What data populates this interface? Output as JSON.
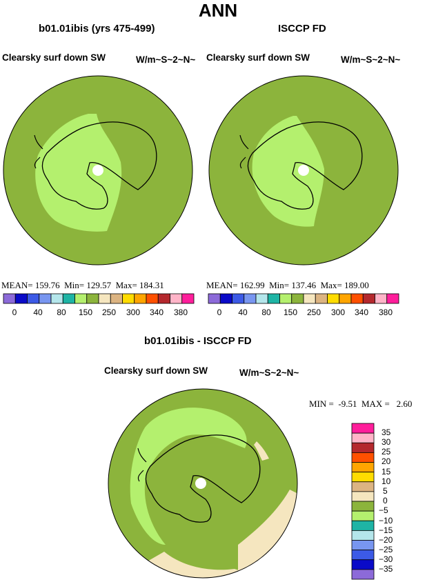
{
  "figure": {
    "title": "ANN"
  },
  "panels": [
    {
      "title": "b01.01ibis (yrs 475-499)",
      "variable": "Clearsky surf down SW",
      "units": "W/m~S~2~N~",
      "stats": {
        "mean_label": "MEAN=",
        "mean": "159.76",
        "min_label": "Min=",
        "min": "129.57",
        "max_label": "Max=",
        "max": "184.31"
      }
    },
    {
      "title": "ISCCP FD",
      "variable": "Clearsky surf down SW",
      "units": "W/m~S~2~N~",
      "stats": {
        "mean_label": "MEAN=",
        "mean": "162.99",
        "min_label": "Min=",
        "min": "137.46",
        "max_label": "Max=",
        "max": "189.00"
      }
    },
    {
      "title": "b01.01ibis - ISCCP FD",
      "variable": "Clearsky surf down SW",
      "units": "W/m~S~2~N~",
      "stats": {
        "min_label": "MIN =",
        "min": "-9.51",
        "max_label": "MAX =",
        "max": "2.60"
      }
    }
  ],
  "colors": {
    "main_colorbar": [
      "#8c6ad9",
      "#0a0ac8",
      "#3c5ae6",
      "#7896f0",
      "#b4e6eb",
      "#1eb4a5",
      "#b4f06e",
      "#8cb43c",
      "#f5e6bf",
      "#dcb482",
      "#ffdc00",
      "#ffa500",
      "#ff5000",
      "#b4282d",
      "#ffb4c8",
      "#ff1e9b"
    ],
    "diff_colorbar": [
      "#8c6ad9",
      "#0a0ac8",
      "#3c5ae6",
      "#7896f0",
      "#b4e6eb",
      "#1eb4a5",
      "#b4f06e",
      "#8cb43c",
      "#f5e6bf",
      "#dcb482",
      "#ffdc00",
      "#ffa500",
      "#ff5000",
      "#b4282d",
      "#ffb4c8",
      "#ff1e9b"
    ],
    "ocean": "#8cb43c",
    "land_light": "#b4f06e",
    "positive": "#f5e6bf"
  },
  "chart_data": [
    {
      "type": "heatmap",
      "projection": "south-polar-stereographic",
      "title": "b01.01ibis (yrs 475-499)",
      "variable": "Clearsky surf down SW",
      "units": "W/m~S~2~N~",
      "levels": [
        0,
        40,
        80,
        150,
        250,
        300,
        340,
        380
      ],
      "colorbar_labels": [
        "0",
        "40",
        "80",
        "150",
        "250",
        "300",
        "340",
        "380"
      ],
      "mean": 159.76,
      "min": 129.57,
      "max": 184.31
    },
    {
      "type": "heatmap",
      "projection": "south-polar-stereographic",
      "title": "ISCCP FD",
      "variable": "Clearsky surf down SW",
      "units": "W/m~S~2~N~",
      "levels": [
        0,
        40,
        80,
        150,
        250,
        300,
        340,
        380
      ],
      "colorbar_labels": [
        "0",
        "40",
        "80",
        "150",
        "250",
        "300",
        "340",
        "380"
      ],
      "mean": 162.99,
      "min": 137.46,
      "max": 189.0
    },
    {
      "type": "heatmap",
      "projection": "south-polar-stereographic",
      "title": "b01.01ibis - ISCCP FD",
      "variable": "Clearsky surf down SW",
      "units": "W/m~S~2~N~",
      "colorbar_labels": [
        "35",
        "30",
        "25",
        "20",
        "15",
        "10",
        "5",
        "0",
        "−5",
        "−10",
        "−15",
        "−20",
        "−25",
        "−30",
        "−35"
      ],
      "min": -9.51,
      "max": 2.6
    }
  ]
}
